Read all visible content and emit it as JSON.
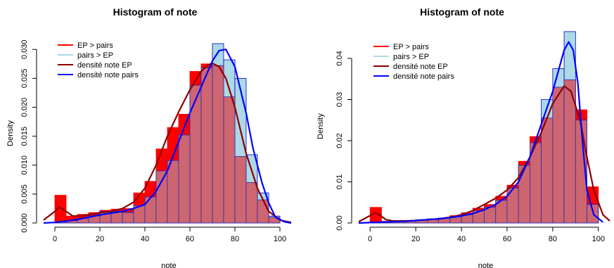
{
  "chart_data": [
    {
      "type": "bar",
      "title": "Histogram of note",
      "xlabel": "note",
      "ylabel": "Density",
      "xlim": [
        -5,
        105
      ],
      "ylim": [
        0,
        0.031
      ],
      "xticks": [
        "0",
        "20",
        "40",
        "60",
        "80",
        "100"
      ],
      "xtick_values": [
        0,
        20,
        40,
        60,
        80,
        100
      ],
      "yticks": [
        "0.000",
        "0.005",
        "0.010",
        "0.015",
        "0.020",
        "0.025",
        "0.030"
      ],
      "ytick_values": [
        0,
        0.005,
        0.01,
        0.015,
        0.02,
        0.025,
        0.03
      ],
      "bin_edges": [
        0,
        5,
        10,
        15,
        20,
        25,
        30,
        35,
        40,
        45,
        50,
        55,
        60,
        65,
        70,
        75,
        80,
        85,
        90,
        95,
        100
      ],
      "legend": {
        "position": "top-left",
        "entries": [
          {
            "label": "EP > pairs",
            "color": "#ff0000"
          },
          {
            "label": "pairs > EP",
            "color": "#add8e6"
          },
          {
            "label": "densité note EP",
            "color": "#8b0000"
          },
          {
            "label": "densité note pairs",
            "color": "#0000ff"
          }
        ]
      },
      "series": [
        {
          "name": "EP > pairs",
          "kind": "hist",
          "values": [
            0.0048,
            0.0012,
            0.0015,
            0.0018,
            0.0022,
            0.0024,
            0.0025,
            0.0052,
            0.0072,
            0.0128,
            0.0165,
            0.0188,
            0.0262,
            0.0275,
            0.0272,
            0.0218,
            0.0115,
            0.007,
            0.004,
            0.001
          ],
          "color": "#ff0000"
        },
        {
          "name": "pairs > EP",
          "kind": "hist",
          "values": [
            0.0002,
            0.0004,
            0.0008,
            0.0012,
            0.002,
            0.002,
            0.0018,
            0.003,
            0.0045,
            0.009,
            0.0108,
            0.0152,
            0.0238,
            0.0268,
            0.031,
            0.0282,
            0.025,
            0.0118,
            0.0052,
            0.0012
          ],
          "color": "#add8e6"
        },
        {
          "name": "densité note EP",
          "kind": "line",
          "x": [
            -5,
            0,
            2,
            5,
            8,
            12,
            16,
            20,
            25,
            30,
            35,
            40,
            45,
            50,
            55,
            60,
            65,
            68,
            70,
            73,
            76,
            80,
            85,
            90,
            95,
            100,
            105
          ],
          "values": [
            0.0005,
            0.002,
            0.0028,
            0.002,
            0.0012,
            0.0012,
            0.0015,
            0.0018,
            0.002,
            0.0025,
            0.0036,
            0.006,
            0.01,
            0.015,
            0.0192,
            0.023,
            0.0262,
            0.0273,
            0.0276,
            0.027,
            0.025,
            0.02,
            0.012,
            0.006,
            0.002,
            0.0005,
            0.0001
          ],
          "color": "#8b0000"
        },
        {
          "name": "densité note pairs",
          "kind": "line",
          "x": [
            -5,
            0,
            5,
            10,
            15,
            20,
            25,
            30,
            35,
            40,
            45,
            50,
            55,
            60,
            65,
            70,
            73,
            76,
            80,
            85,
            88,
            92,
            95,
            98,
            102,
            105
          ],
          "values": [
            0,
            0.0001,
            0.0003,
            0.0006,
            0.001,
            0.0014,
            0.0017,
            0.002,
            0.0025,
            0.0032,
            0.0055,
            0.009,
            0.014,
            0.019,
            0.0235,
            0.028,
            0.0298,
            0.03,
            0.027,
            0.019,
            0.013,
            0.007,
            0.0035,
            0.001,
            0.0002,
            0
          ]
        }
      ]
    },
    {
      "type": "bar",
      "title": "Histogram of note",
      "xlabel": "note",
      "ylabel": "Density",
      "xlim": [
        -5,
        105
      ],
      "ylim": [
        0,
        0.047
      ],
      "xticks": [
        "0",
        "20",
        "40",
        "60",
        "80",
        "100"
      ],
      "xtick_values": [
        0,
        20,
        40,
        60,
        80,
        100
      ],
      "yticks": [
        "0.00",
        "0.01",
        "0.02",
        "0.03",
        "0.04"
      ],
      "ytick_values": [
        0,
        0.01,
        0.02,
        0.03,
        0.04
      ],
      "bin_edges": [
        0,
        5,
        10,
        15,
        20,
        25,
        30,
        35,
        40,
        45,
        50,
        55,
        60,
        65,
        70,
        75,
        80,
        85,
        90,
        95,
        100
      ],
      "legend": {
        "position": "top-left",
        "entries": [
          {
            "label": "EP > pairs",
            "color": "#ff0000"
          },
          {
            "label": "pairs > EP",
            "color": "#add8e6"
          },
          {
            "label": "densité note EP",
            "color": "#8b0000"
          },
          {
            "label": "densité note pairs",
            "color": "#0000ff"
          }
        ]
      },
      "series": [
        {
          "name": "EP > pairs",
          "kind": "hist",
          "values": [
            0.0038,
            0.0004,
            0.0003,
            0.0005,
            0.0008,
            0.0009,
            0.0012,
            0.0018,
            0.0025,
            0.0036,
            0.0045,
            0.0065,
            0.0092,
            0.015,
            0.021,
            0.0255,
            0.033,
            0.0348,
            0.0275,
            0.0088
          ],
          "color": "#ff0000"
        },
        {
          "name": "pairs > EP",
          "kind": "hist",
          "values": [
            0.0001,
            0.0002,
            0.0004,
            0.0006,
            0.0008,
            0.001,
            0.0012,
            0.0016,
            0.002,
            0.003,
            0.0038,
            0.0055,
            0.0085,
            0.014,
            0.0195,
            0.03,
            0.0375,
            0.0465,
            0.025,
            0.0045
          ],
          "color": "#add8e6"
        },
        {
          "name": "densité note EP",
          "kind": "line",
          "x": [
            -5,
            0,
            2,
            4,
            7,
            10,
            15,
            20,
            25,
            30,
            35,
            40,
            45,
            50,
            55,
            60,
            65,
            70,
            75,
            80,
            85,
            88,
            92,
            95,
            98,
            102,
            105
          ],
          "values": [
            0.0003,
            0.0018,
            0.0025,
            0.002,
            0.0008,
            0.0005,
            0.0005,
            0.0006,
            0.0008,
            0.001,
            0.0014,
            0.002,
            0.003,
            0.0045,
            0.006,
            0.008,
            0.011,
            0.016,
            0.022,
            0.029,
            0.0333,
            0.032,
            0.025,
            0.016,
            0.008,
            0.002,
            0.0005
          ]
        },
        {
          "name": "densité note pairs",
          "kind": "line",
          "x": [
            -5,
            0,
            5,
            10,
            15,
            20,
            25,
            30,
            35,
            40,
            45,
            50,
            55,
            60,
            65,
            70,
            75,
            80,
            83,
            85,
            87,
            89,
            91,
            93,
            95,
            98,
            102
          ],
          "values": [
            0,
            0.0001,
            0.0002,
            0.0003,
            0.0004,
            0.0006,
            0.0008,
            0.001,
            0.0013,
            0.0017,
            0.0023,
            0.0032,
            0.0045,
            0.0065,
            0.01,
            0.016,
            0.024,
            0.032,
            0.038,
            0.042,
            0.044,
            0.042,
            0.034,
            0.02,
            0.008,
            0.002,
            0.0002
          ],
          "color": "#0000ff"
        }
      ]
    }
  ]
}
